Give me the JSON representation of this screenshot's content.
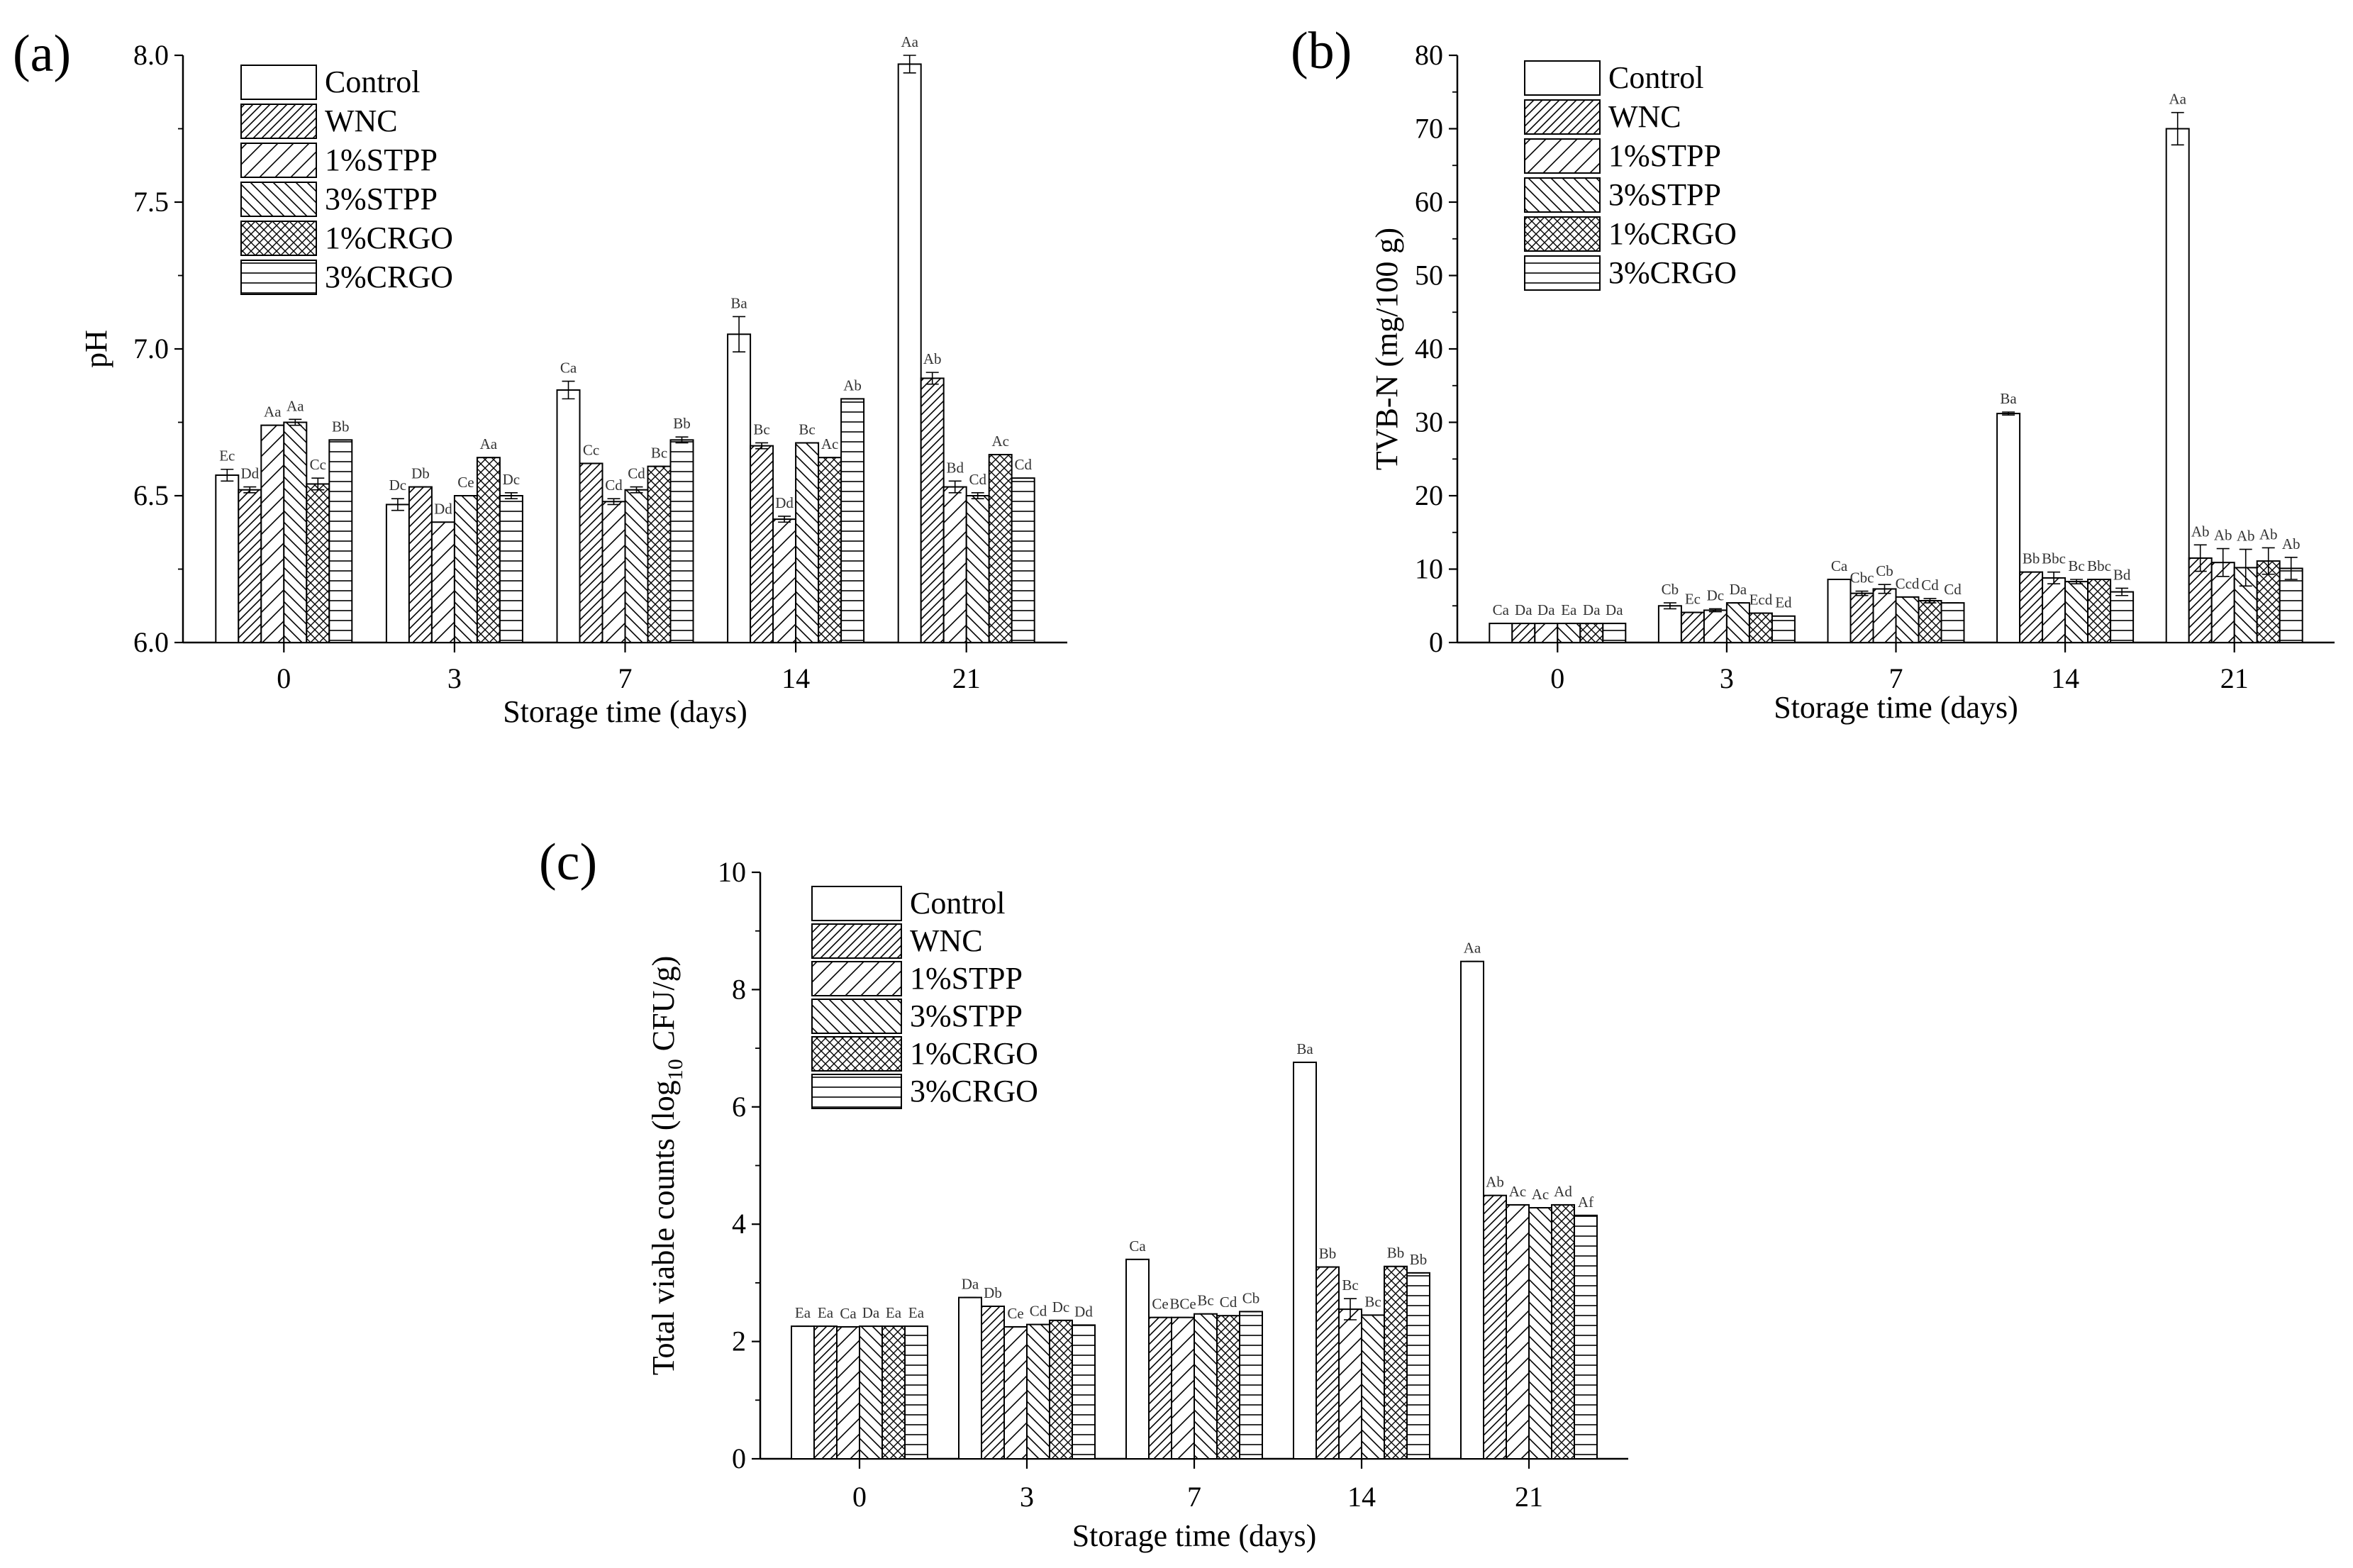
{
  "panel_labels": [
    "(a)",
    "(b)",
    "(c)"
  ],
  "legend": [
    "Control",
    "WNC",
    "1%STPP",
    "3%STPP",
    "1%CRGO",
    "3%CRGO"
  ],
  "chart_data": [
    {
      "type": "bar",
      "panel": "(a)",
      "categories": [
        "0",
        "3",
        "7",
        "14",
        "21"
      ],
      "xlabel": "Storage time (days)",
      "ylabel": "pH",
      "ylim": [
        6.0,
        8.0
      ],
      "yticks": [
        "6.0",
        "6.5",
        "7.0",
        "7.5",
        "8.0"
      ],
      "legend_position": "top-left",
      "grid": false,
      "series": [
        {
          "name": "Control",
          "values": [
            6.57,
            6.47,
            6.86,
            7.05,
            7.97
          ],
          "errors": [
            0.02,
            0.02,
            0.03,
            0.06,
            0.03
          ],
          "labels": [
            "Ec",
            "Dc",
            "Ca",
            "Ba",
            "Aa"
          ]
        },
        {
          "name": "WNC",
          "values": [
            6.52,
            6.53,
            6.61,
            6.67,
            6.9
          ],
          "errors": [
            0.01,
            0.0,
            0.0,
            0.01,
            0.02
          ],
          "labels": [
            "Dd",
            "Db",
            "Cc",
            "Bc",
            "Ab"
          ]
        },
        {
          "name": "1%STPP",
          "values": [
            6.74,
            6.41,
            6.48,
            6.42,
            6.53
          ],
          "errors": [
            0.0,
            0.0,
            0.01,
            0.01,
            0.02
          ],
          "labels": [
            "Aa",
            "Dd",
            "Cd",
            "Dd",
            "Bd"
          ]
        },
        {
          "name": "3%STPP",
          "values": [
            6.75,
            6.5,
            6.52,
            6.68,
            6.5
          ],
          "errors": [
            0.01,
            0.0,
            0.01,
            0.0,
            0.01
          ],
          "labels": [
            "Aa",
            "Ce",
            "Cd",
            "Bc",
            "Cd"
          ]
        },
        {
          "name": "1%CRGO",
          "values": [
            6.54,
            6.63,
            6.6,
            6.63,
            6.64
          ],
          "errors": [
            0.02,
            0.0,
            0.0,
            0.0,
            0.0
          ],
          "labels": [
            "Cc",
            "Aa",
            "Bc",
            "Ac",
            "Ac"
          ]
        },
        {
          "name": "3%CRGO",
          "values": [
            6.69,
            6.5,
            6.69,
            6.83,
            6.56
          ],
          "errors": [
            0.0,
            0.01,
            0.01,
            0.0,
            0.0
          ],
          "labels": [
            "Bb",
            "Dc",
            "Bb",
            "Ab",
            "Cd"
          ]
        }
      ]
    },
    {
      "type": "bar",
      "panel": "(b)",
      "categories": [
        "0",
        "3",
        "7",
        "14",
        "21"
      ],
      "xlabel": "Storage time (days)",
      "ylabel": "TVB-N (mg/100 g)",
      "ylim": [
        0,
        80
      ],
      "yticks": [
        "0",
        "10",
        "20",
        "30",
        "40",
        "50",
        "60",
        "70",
        "80"
      ],
      "legend_position": "top-left",
      "grid": false,
      "series": [
        {
          "name": "Control",
          "values": [
            2.6,
            5.0,
            8.6,
            31.2,
            70.0
          ],
          "errors": [
            0.0,
            0.4,
            0.0,
            0.2,
            2.2
          ],
          "labels": [
            "Ca",
            "Cb",
            "Ca",
            "Ba",
            "Aa"
          ]
        },
        {
          "name": "WNC",
          "values": [
            2.6,
            4.1,
            6.7,
            9.6,
            11.5
          ],
          "errors": [
            0.0,
            0.0,
            0.3,
            0.0,
            1.8
          ],
          "labels": [
            "Da",
            "Ec",
            "Cbc",
            "Bb",
            "Ab"
          ]
        },
        {
          "name": "1%STPP",
          "values": [
            2.6,
            4.4,
            7.3,
            8.8,
            10.9
          ],
          "errors": [
            0.0,
            0.2,
            0.6,
            0.8,
            1.9
          ],
          "labels": [
            "Da",
            "Dc",
            "Cb",
            "Bbc",
            "Ab"
          ]
        },
        {
          "name": "3%STPP",
          "values": [
            2.6,
            5.4,
            6.2,
            8.3,
            10.2
          ],
          "errors": [
            0.0,
            0.0,
            0.0,
            0.3,
            2.5
          ],
          "labels": [
            "Ea",
            "Da",
            "Ccd",
            "Bc",
            "Ab"
          ]
        },
        {
          "name": "1%CRGO",
          "values": [
            2.6,
            4.0,
            5.7,
            8.6,
            11.1
          ],
          "errors": [
            0.0,
            0.0,
            0.3,
            0.0,
            1.8
          ],
          "labels": [
            "Da",
            "Ecd",
            "Cd",
            "Bbc",
            "Ab"
          ]
        },
        {
          "name": "3%CRGO",
          "values": [
            2.6,
            3.6,
            5.4,
            6.9,
            10.1
          ],
          "errors": [
            0.0,
            0.0,
            0.0,
            0.5,
            1.5
          ],
          "labels": [
            "Da",
            "Ed",
            "Cd",
            "Bd",
            "Ab"
          ]
        }
      ]
    },
    {
      "type": "bar",
      "panel": "(c)",
      "categories": [
        "0",
        "3",
        "7",
        "14",
        "21"
      ],
      "xlabel": "Storage time (days)",
      "ylabel_prefix": "Total viable counts (log",
      "ylabel_sub": "10",
      "ylabel_suffix": " CFU/g)",
      "ylim": [
        0,
        10
      ],
      "yticks": [
        "0",
        "2",
        "4",
        "6",
        "8",
        "10"
      ],
      "legend_position": "top-left",
      "grid": false,
      "series": [
        {
          "name": "Control",
          "values": [
            2.26,
            2.75,
            3.4,
            6.76,
            8.48
          ],
          "errors": [
            0.0,
            0.0,
            0.0,
            0.0,
            0.0
          ],
          "labels": [
            "Ea",
            "Da",
            "Ca",
            "Ba",
            "Aa"
          ]
        },
        {
          "name": "WNC",
          "values": [
            2.26,
            2.6,
            2.41,
            3.27,
            4.49
          ],
          "errors": [
            0.0,
            0.0,
            0.0,
            0.0,
            0.0
          ],
          "labels": [
            "Ea",
            "Db",
            "Ce",
            "Bb",
            "Ab"
          ]
        },
        {
          "name": "1%STPP",
          "values": [
            2.25,
            2.25,
            2.41,
            2.55,
            4.33
          ],
          "errors": [
            0.0,
            0.0,
            0.0,
            0.18,
            0.0
          ],
          "labels": [
            "Ca",
            "Ce",
            "BCe",
            "Bc",
            "Ac"
          ]
        },
        {
          "name": "3%STPP",
          "values": [
            2.26,
            2.29,
            2.47,
            2.45,
            4.28
          ],
          "errors": [
            0.0,
            0.0,
            0.0,
            0.0,
            0.0
          ],
          "labels": [
            "Da",
            "Cd",
            "Bc",
            "Bc",
            "Ac"
          ]
        },
        {
          "name": "1%CRGO",
          "values": [
            2.26,
            2.36,
            2.44,
            3.28,
            4.33
          ],
          "errors": [
            0.0,
            0.0,
            0.0,
            0.0,
            0.0
          ],
          "labels": [
            "Ea",
            "Dc",
            "Cd",
            "Bb",
            "Ad"
          ]
        },
        {
          "name": "3%CRGO",
          "values": [
            2.26,
            2.28,
            2.51,
            3.17,
            4.15
          ],
          "errors": [
            0.0,
            0.0,
            0.0,
            0.0,
            0.0
          ],
          "labels": [
            "Ea",
            "Dd",
            "Cb",
            "Bb",
            "Af"
          ]
        }
      ]
    }
  ]
}
